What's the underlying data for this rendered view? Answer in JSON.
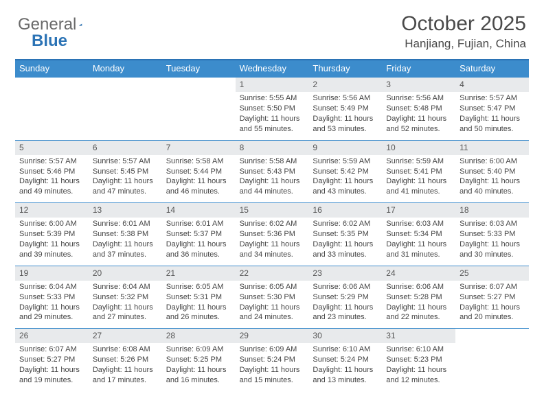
{
  "logo": {
    "part1": "General",
    "part2": "Blue"
  },
  "title": "October 2025",
  "location": "Hanjiang, Fujian, China",
  "colors": {
    "header_bar": "#3c8ccc",
    "header_border": "#2b73b5",
    "date_bg": "#e8eaec",
    "text": "#444444",
    "logo_blue": "#2b73b5",
    "logo_gray": "#6a6a6a"
  },
  "day_names": [
    "Sunday",
    "Monday",
    "Tuesday",
    "Wednesday",
    "Thursday",
    "Friday",
    "Saturday"
  ],
  "weeks": [
    [
      null,
      null,
      null,
      {
        "d": "1",
        "sr": "5:55 AM",
        "ss": "5:50 PM",
        "dh": 11,
        "dm": 55
      },
      {
        "d": "2",
        "sr": "5:56 AM",
        "ss": "5:49 PM",
        "dh": 11,
        "dm": 53
      },
      {
        "d": "3",
        "sr": "5:56 AM",
        "ss": "5:48 PM",
        "dh": 11,
        "dm": 52
      },
      {
        "d": "4",
        "sr": "5:57 AM",
        "ss": "5:47 PM",
        "dh": 11,
        "dm": 50
      }
    ],
    [
      {
        "d": "5",
        "sr": "5:57 AM",
        "ss": "5:46 PM",
        "dh": 11,
        "dm": 49
      },
      {
        "d": "6",
        "sr": "5:57 AM",
        "ss": "5:45 PM",
        "dh": 11,
        "dm": 47
      },
      {
        "d": "7",
        "sr": "5:58 AM",
        "ss": "5:44 PM",
        "dh": 11,
        "dm": 46
      },
      {
        "d": "8",
        "sr": "5:58 AM",
        "ss": "5:43 PM",
        "dh": 11,
        "dm": 44
      },
      {
        "d": "9",
        "sr": "5:59 AM",
        "ss": "5:42 PM",
        "dh": 11,
        "dm": 43
      },
      {
        "d": "10",
        "sr": "5:59 AM",
        "ss": "5:41 PM",
        "dh": 11,
        "dm": 41
      },
      {
        "d": "11",
        "sr": "6:00 AM",
        "ss": "5:40 PM",
        "dh": 11,
        "dm": 40
      }
    ],
    [
      {
        "d": "12",
        "sr": "6:00 AM",
        "ss": "5:39 PM",
        "dh": 11,
        "dm": 39
      },
      {
        "d": "13",
        "sr": "6:01 AM",
        "ss": "5:38 PM",
        "dh": 11,
        "dm": 37
      },
      {
        "d": "14",
        "sr": "6:01 AM",
        "ss": "5:37 PM",
        "dh": 11,
        "dm": 36
      },
      {
        "d": "15",
        "sr": "6:02 AM",
        "ss": "5:36 PM",
        "dh": 11,
        "dm": 34
      },
      {
        "d": "16",
        "sr": "6:02 AM",
        "ss": "5:35 PM",
        "dh": 11,
        "dm": 33
      },
      {
        "d": "17",
        "sr": "6:03 AM",
        "ss": "5:34 PM",
        "dh": 11,
        "dm": 31
      },
      {
        "d": "18",
        "sr": "6:03 AM",
        "ss": "5:33 PM",
        "dh": 11,
        "dm": 30
      }
    ],
    [
      {
        "d": "19",
        "sr": "6:04 AM",
        "ss": "5:33 PM",
        "dh": 11,
        "dm": 29
      },
      {
        "d": "20",
        "sr": "6:04 AM",
        "ss": "5:32 PM",
        "dh": 11,
        "dm": 27
      },
      {
        "d": "21",
        "sr": "6:05 AM",
        "ss": "5:31 PM",
        "dh": 11,
        "dm": 26
      },
      {
        "d": "22",
        "sr": "6:05 AM",
        "ss": "5:30 PM",
        "dh": 11,
        "dm": 24
      },
      {
        "d": "23",
        "sr": "6:06 AM",
        "ss": "5:29 PM",
        "dh": 11,
        "dm": 23
      },
      {
        "d": "24",
        "sr": "6:06 AM",
        "ss": "5:28 PM",
        "dh": 11,
        "dm": 22
      },
      {
        "d": "25",
        "sr": "6:07 AM",
        "ss": "5:27 PM",
        "dh": 11,
        "dm": 20
      }
    ],
    [
      {
        "d": "26",
        "sr": "6:07 AM",
        "ss": "5:27 PM",
        "dh": 11,
        "dm": 19
      },
      {
        "d": "27",
        "sr": "6:08 AM",
        "ss": "5:26 PM",
        "dh": 11,
        "dm": 17
      },
      {
        "d": "28",
        "sr": "6:09 AM",
        "ss": "5:25 PM",
        "dh": 11,
        "dm": 16
      },
      {
        "d": "29",
        "sr": "6:09 AM",
        "ss": "5:24 PM",
        "dh": 11,
        "dm": 15
      },
      {
        "d": "30",
        "sr": "6:10 AM",
        "ss": "5:24 PM",
        "dh": 11,
        "dm": 13
      },
      {
        "d": "31",
        "sr": "6:10 AM",
        "ss": "5:23 PM",
        "dh": 11,
        "dm": 12
      },
      null
    ]
  ],
  "labels": {
    "sunrise": "Sunrise:",
    "sunset": "Sunset:",
    "daylight_prefix": "Daylight:",
    "hours_word": "hours",
    "and_word": "and",
    "minutes_word": "minutes."
  }
}
